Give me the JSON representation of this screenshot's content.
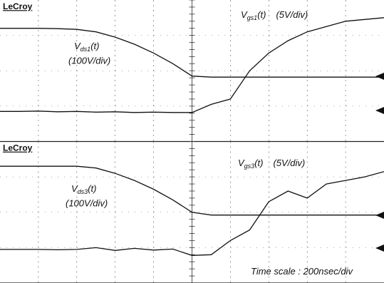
{
  "chart_data": [
    {
      "type": "line",
      "title": "LeCroy",
      "x": [
        0,
        0.5,
        1,
        1.5,
        2,
        2.5,
        3,
        3.5,
        4,
        4.5,
        5,
        5.5,
        6,
        6.5,
        7,
        7.5,
        8,
        8.5,
        9,
        9.5,
        10
      ],
      "xlim": [
        0,
        10
      ],
      "ylim": [
        0,
        4
      ],
      "series": [
        {
          "color": "#111",
          "values": [
            3.2,
            3.2,
            3.2,
            3.19,
            3.17,
            3.1,
            2.95,
            2.75,
            2.5,
            2.2,
            1.85,
            1.82,
            1.82,
            1.82,
            1.82,
            1.82,
            1.82,
            1.82,
            1.82,
            1.82,
            1.82
          ]
        },
        {
          "color": "#111",
          "values": [
            0.85,
            0.85,
            0.86,
            0.84,
            0.85,
            0.83,
            0.84,
            0.82,
            0.83,
            0.82,
            0.82,
            1.05,
            1.2,
            2.0,
            2.5,
            2.85,
            3.1,
            3.25,
            3.4,
            3.45,
            3.5
          ]
        }
      ],
      "annotations": [
        {
          "symbol": "V",
          "subscript": "gs1",
          "suffix": "(t)",
          "scale": "(5V/div)"
        },
        {
          "symbol": "V",
          "subscript": "ds1",
          "suffix": "(t)",
          "scale": "(100V/div)"
        }
      ]
    },
    {
      "type": "line",
      "title": "LeCroy",
      "x": [
        0,
        0.5,
        1,
        1.5,
        2,
        2.5,
        3,
        3.5,
        4,
        4.5,
        5,
        5.5,
        6,
        6.5,
        7,
        7.5,
        8,
        8.5,
        9,
        9.5,
        10
      ],
      "xlim": [
        0,
        10
      ],
      "ylim": [
        0,
        4
      ],
      "series": [
        {
          "color": "#111",
          "values": [
            3.3,
            3.3,
            3.3,
            3.3,
            3.3,
            3.25,
            3.1,
            2.9,
            2.65,
            2.35,
            2.0,
            1.92,
            1.92,
            1.92,
            1.92,
            1.92,
            1.92,
            1.92,
            1.92,
            1.92,
            1.92
          ]
        },
        {
          "color": "#111",
          "values": [
            0.95,
            0.95,
            0.95,
            0.94,
            0.95,
            1.0,
            0.92,
            0.98,
            0.93,
            0.96,
            0.78,
            0.8,
            1.2,
            1.5,
            2.3,
            2.6,
            2.4,
            2.8,
            2.9,
            3.0,
            3.15
          ]
        }
      ],
      "annotations": [
        {
          "symbol": "V",
          "subscript": "gs3",
          "suffix": "(t)",
          "scale": "(5V/div)"
        },
        {
          "symbol": "V",
          "subscript": "ds3",
          "suffix": "(t)",
          "scale": "(100V/div)"
        }
      ],
      "note": "Time scale : 200nsec/div"
    }
  ]
}
